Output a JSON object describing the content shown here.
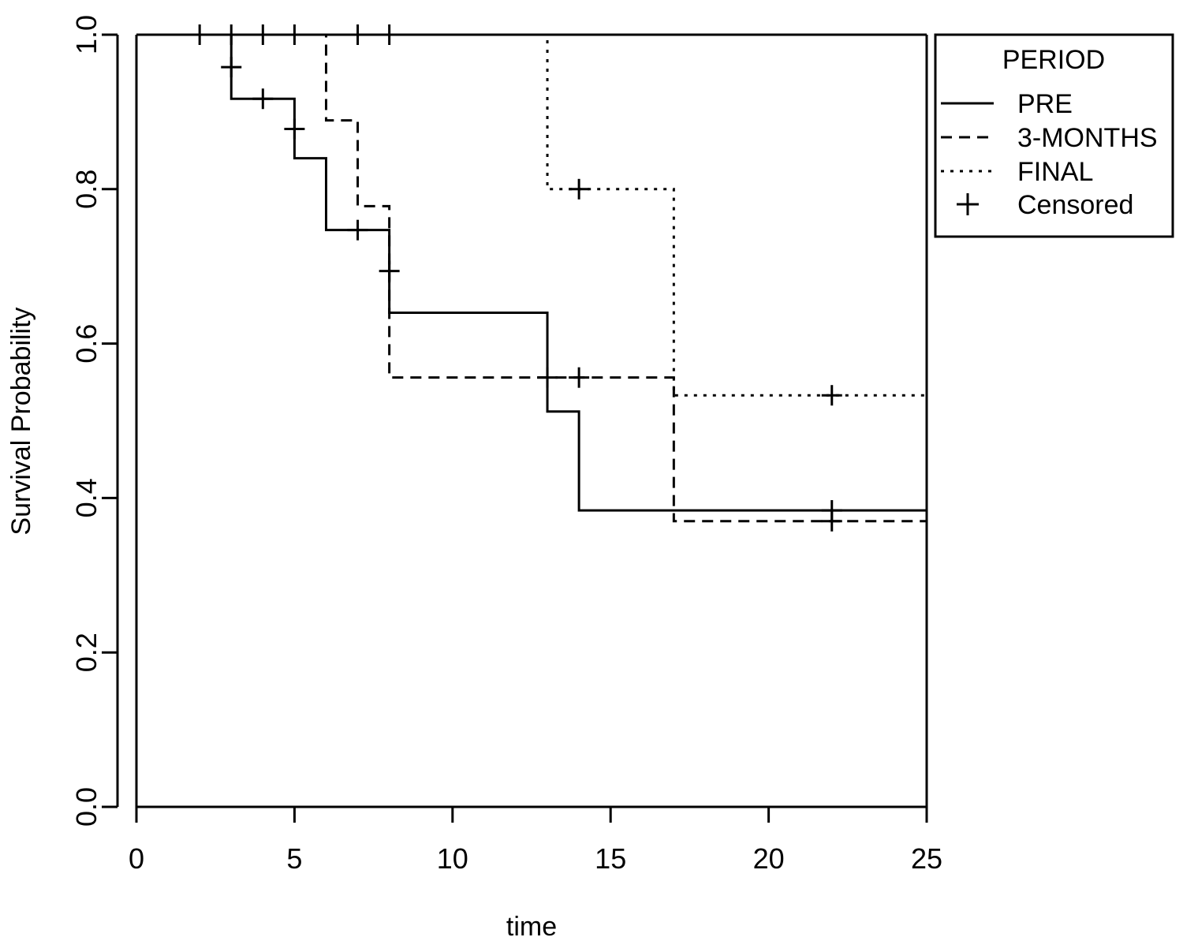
{
  "chart_data": {
    "type": "line",
    "subtype": "kaplan-meier step",
    "xlabel": "time",
    "ylabel": "Survival Probability",
    "xlim": [
      0,
      25
    ],
    "ylim": [
      0,
      1
    ],
    "xticks": [
      "0",
      "5",
      "10",
      "15",
      "20",
      "25"
    ],
    "yticks": [
      "0.0",
      "0.2",
      "0.4",
      "0.6",
      "0.8",
      "1.0"
    ],
    "grid": false,
    "legend": {
      "title": "PERIOD",
      "position": "outside-top-right",
      "entries": [
        {
          "label": "PRE",
          "style": "solid"
        },
        {
          "label": "3-MONTHS",
          "style": "dashed"
        },
        {
          "label": "FINAL",
          "style": "dotted"
        },
        {
          "label": "Censored",
          "style": "plus-marker"
        }
      ]
    },
    "series": [
      {
        "name": "PRE",
        "style": "solid",
        "steps": [
          [
            0,
            1.0
          ],
          [
            3,
            0.917
          ],
          [
            5,
            0.84
          ],
          [
            6,
            0.747
          ],
          [
            8,
            0.64
          ],
          [
            13,
            0.512
          ],
          [
            14,
            0.384
          ],
          [
            25,
            0.384
          ]
        ],
        "censored": [
          [
            3,
            0.958
          ],
          [
            4,
            0.917
          ],
          [
            5,
            0.878
          ],
          [
            7,
            0.747
          ],
          [
            8,
            0.694
          ],
          [
            22,
            0.384
          ]
        ]
      },
      {
        "name": "3-MONTHS",
        "style": "dashed",
        "steps": [
          [
            0,
            1.0
          ],
          [
            6,
            0.889
          ],
          [
            7,
            0.778
          ],
          [
            8,
            0.556
          ],
          [
            17,
            0.37
          ],
          [
            25,
            0.37
          ]
        ],
        "censored": [
          [
            2,
            1.0
          ],
          [
            3,
            1.0
          ],
          [
            4,
            1.0
          ],
          [
            5,
            1.0
          ],
          [
            8,
            1.0
          ],
          [
            13,
            0.556
          ],
          [
            14,
            0.556
          ],
          [
            22,
            0.37
          ]
        ]
      },
      {
        "name": "FINAL",
        "style": "dotted",
        "steps": [
          [
            0,
            1.0
          ],
          [
            13,
            0.8
          ],
          [
            17,
            0.533
          ],
          [
            25,
            0.533
          ]
        ],
        "censored": [
          [
            7,
            1.0
          ],
          [
            14,
            0.8
          ],
          [
            22,
            0.533
          ]
        ]
      }
    ]
  }
}
